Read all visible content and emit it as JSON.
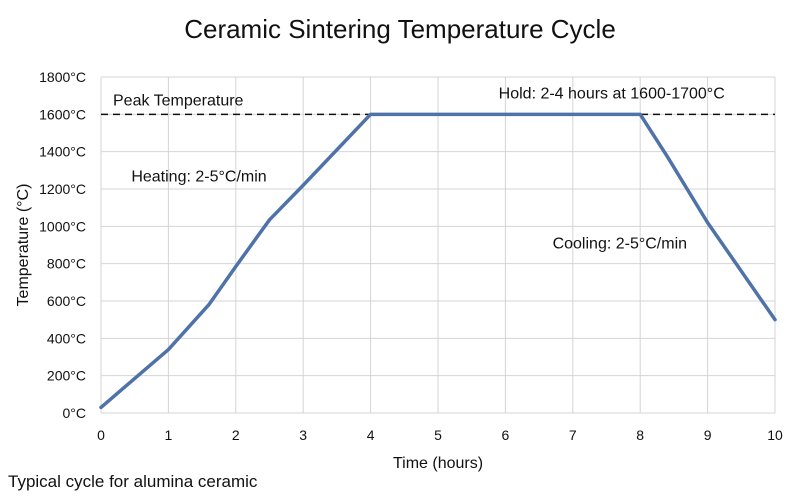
{
  "chart_data": {
    "type": "line",
    "title": "Ceramic Sintering Temperature Cycle",
    "xlabel": "Time (hours)",
    "ylabel": "Temperature (°C)",
    "xlim": [
      0,
      10
    ],
    "ylim": [
      0,
      1800
    ],
    "x_ticks": [
      "0",
      "1",
      "2",
      "3",
      "4",
      "5",
      "6",
      "7",
      "8",
      "9",
      "10"
    ],
    "y_ticks": [
      "0°C",
      "200°C",
      "400°C",
      "600°C",
      "800°C",
      "1000°C",
      "1200°C",
      "1400°C",
      "1600°C",
      "1800°C"
    ],
    "grid": true,
    "series": [
      {
        "color": "#4f73a8",
        "x": [
          0,
          1,
          1.6,
          2,
          2.5,
          3,
          4,
          8,
          8.4,
          9,
          10
        ],
        "y": [
          30,
          340,
          580,
          785,
          1035,
          1220,
          1600,
          1600,
          1375,
          1020,
          500
        ]
      }
    ],
    "reference_line": {
      "y": 1600,
      "style": "dashed",
      "color": "#111111",
      "label": "Peak Temperature"
    },
    "annotations": [
      {
        "text": "Hold: 2-4 hours at 1600-1700°C",
        "x": 5.9,
        "y": 1685
      },
      {
        "text": "Heating: 2-5°C/min",
        "x": 0.45,
        "y": 1240
      },
      {
        "text": "Cooling: 2-5°C/min",
        "x": 6.7,
        "y": 880
      }
    ]
  },
  "footnote": "Typical cycle for alumina ceramic"
}
